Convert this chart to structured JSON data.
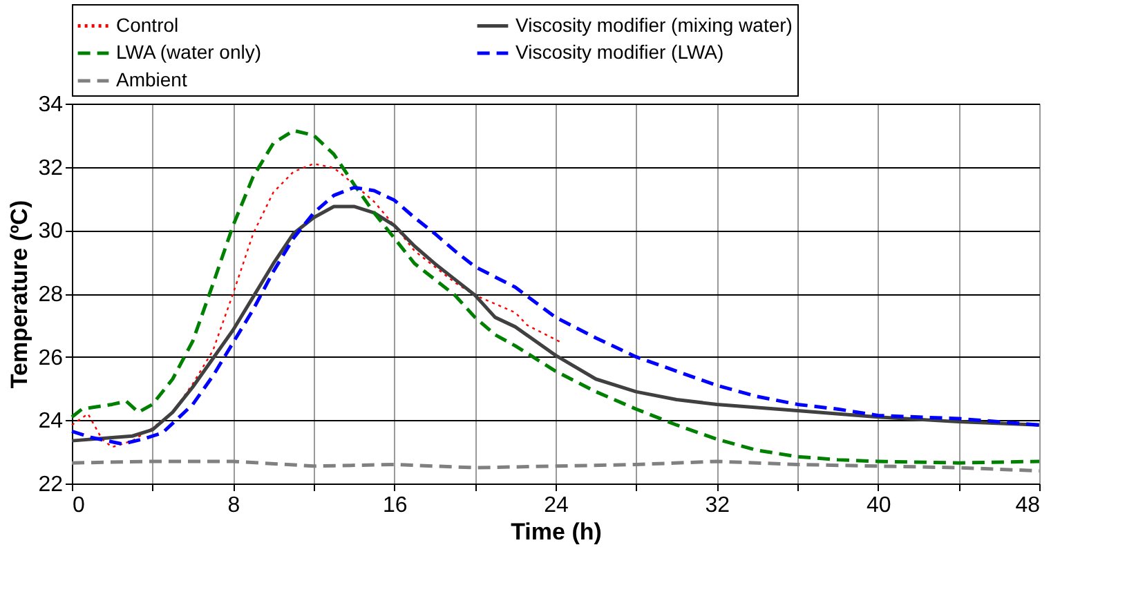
{
  "chart_data": {
    "type": "line",
    "xlabel": "Time (h)",
    "ylabel": "Temperature (ºC)",
    "xlim": [
      0,
      48
    ],
    "ylim": [
      22,
      34
    ],
    "xticks": [
      0,
      {
        "value": 4,
        "label": null
      },
      8,
      {
        "value": 12,
        "label": null
      },
      16,
      {
        "value": 20,
        "label": null
      },
      24,
      {
        "value": 28,
        "label": null
      },
      32,
      {
        "value": 36,
        "label": null
      },
      40,
      {
        "value": 44,
        "label": null
      },
      48
    ],
    "yticks": [
      22,
      24,
      26,
      28,
      30,
      32,
      34
    ],
    "grid": true,
    "legend": "top",
    "marker": "none",
    "series": [
      {
        "name": "Control",
        "color": "#ff0000",
        "line_style": "dotted",
        "x": [
          0,
          0.8,
          1.5,
          2,
          3,
          4,
          5,
          6,
          7,
          8,
          9,
          10,
          11,
          12,
          13,
          14,
          15,
          16,
          17,
          18,
          19,
          20,
          22,
          22.6,
          24.3
        ],
        "values": [
          23.85,
          24.2,
          23.4,
          23.15,
          23.35,
          23.75,
          24.25,
          25.15,
          26.2,
          28.0,
          29.9,
          31.2,
          31.85,
          32.1,
          31.97,
          31.45,
          30.9,
          30.15,
          29.35,
          28.85,
          28.35,
          27.95,
          27.4,
          27.0,
          26.45
        ]
      },
      {
        "name": "Viscosity modifier (mixing water)",
        "color": "#404040",
        "line_style": "solid",
        "x": [
          0,
          2,
          3,
          4,
          5,
          6,
          7,
          8,
          9,
          10,
          11,
          12,
          13,
          14,
          15,
          16,
          17,
          18,
          19,
          20,
          21,
          22,
          24,
          26,
          28,
          30,
          32,
          36,
          40,
          44,
          48
        ],
        "values": [
          23.35,
          23.45,
          23.5,
          23.7,
          24.25,
          25.05,
          25.95,
          26.85,
          27.9,
          28.95,
          29.9,
          30.4,
          30.75,
          30.75,
          30.55,
          30.15,
          29.5,
          28.95,
          28.45,
          27.95,
          27.25,
          26.95,
          26.05,
          25.3,
          24.9,
          24.65,
          24.5,
          24.3,
          24.1,
          23.95,
          23.85
        ]
      },
      {
        "name": "LWA (water only)",
        "color": "#008000",
        "line_style": "dashed",
        "x": [
          0,
          0.5,
          2,
          2.7,
          3.3,
          4,
          5,
          6,
          7,
          8,
          9,
          10,
          11,
          12,
          13,
          14,
          15,
          16,
          17,
          18,
          19,
          20,
          21,
          22,
          24,
          26,
          28,
          30,
          32,
          34,
          36,
          38,
          40,
          44,
          48
        ],
        "values": [
          24.1,
          24.35,
          24.5,
          24.6,
          24.25,
          24.5,
          25.3,
          26.5,
          28.3,
          30.15,
          31.7,
          32.75,
          33.15,
          33.0,
          32.4,
          31.45,
          30.55,
          29.75,
          28.95,
          28.45,
          27.95,
          27.25,
          26.7,
          26.35,
          25.55,
          24.9,
          24.35,
          23.85,
          23.4,
          23.05,
          22.85,
          22.75,
          22.7,
          22.65,
          22.7
        ]
      },
      {
        "name": "Viscosity modifier (LWA)",
        "color": "#0000ff",
        "line_style": "dashed",
        "x": [
          0,
          1,
          2.5,
          3.5,
          4.5,
          5,
          6,
          7,
          8,
          9,
          10,
          11,
          12,
          13,
          14,
          15,
          16,
          17,
          18,
          19,
          20,
          22,
          24,
          26,
          28,
          30,
          32,
          34,
          36,
          38,
          40,
          44,
          48
        ],
        "values": [
          23.65,
          23.45,
          23.25,
          23.4,
          23.6,
          23.9,
          24.5,
          25.4,
          26.45,
          27.5,
          28.7,
          29.75,
          30.55,
          31.1,
          31.35,
          31.25,
          30.95,
          30.4,
          29.9,
          29.35,
          28.85,
          28.2,
          27.25,
          26.6,
          26.0,
          25.55,
          25.1,
          24.75,
          24.5,
          24.35,
          24.15,
          24.05,
          23.85
        ]
      },
      {
        "name": "Ambient",
        "color": "#808080",
        "line_style": "dashed",
        "x": [
          0,
          4,
          8,
          12,
          16,
          20,
          24,
          28,
          32,
          36,
          40,
          44,
          48
        ],
        "values": [
          22.65,
          22.7,
          22.7,
          22.55,
          22.6,
          22.5,
          22.55,
          22.6,
          22.7,
          22.6,
          22.55,
          22.5,
          22.4
        ]
      }
    ]
  }
}
